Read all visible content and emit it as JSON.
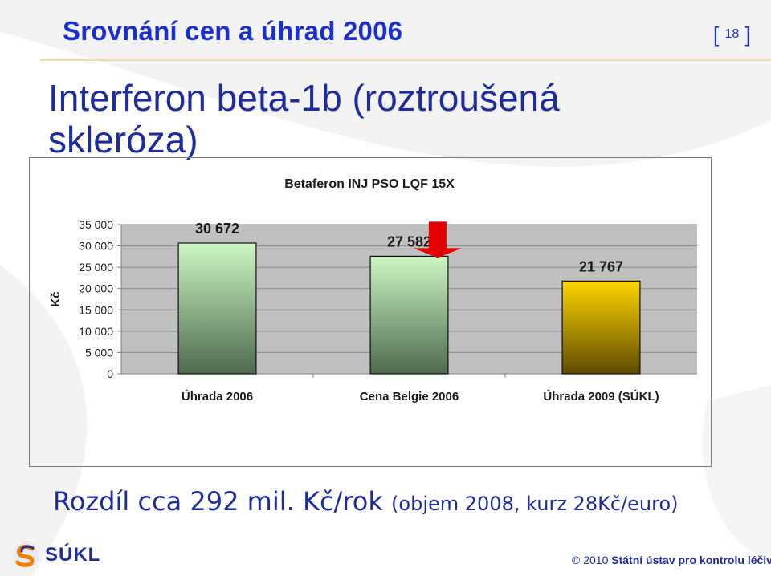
{
  "slide": {
    "title": "Srovnání cen a úhrad 2006",
    "number": "18",
    "subtitle": "Interferon beta-1b (roztroušená skleróza)",
    "note_main": "Rozdíl cca 292 mil. Kč/rok",
    "note_detail": "(objem 2008, kurz 28Kč/euro)",
    "logo_text": "SÚKL",
    "footer_year": "© 2010",
    "footer_org": "Státní ústav pro kontrolu léčiv"
  },
  "colors": {
    "title": "#1a2fd0",
    "plot_bg": "#c0c0c0",
    "bar_green_top": "#cdf7c4",
    "bar_green_bottom": "#4e6a4e",
    "bar_yellow_top": "#ffd600",
    "bar_yellow_bottom": "#5f4a00",
    "arrow": "#e30000"
  },
  "chart_data": {
    "type": "bar",
    "title": "Betaferon INJ PSO LQF 15X",
    "ylabel": "Kč",
    "xlabel": "",
    "ylim": [
      0,
      35000
    ],
    "yticks": [
      0,
      5000,
      10000,
      15000,
      20000,
      25000,
      30000,
      35000
    ],
    "ytick_labels": [
      "0",
      "5 000",
      "10 000",
      "15 000",
      "20 000",
      "25 000",
      "30 000",
      "35 000"
    ],
    "categories": [
      "Úhrada 2006",
      "Cena Belgie 2006",
      "Úhrada 2009 (SÚKL)"
    ],
    "values": [
      30672,
      27582,
      21767
    ],
    "data_labels": [
      "30 672",
      "27 582",
      "21 767"
    ],
    "grid": true,
    "annotations": [
      {
        "type": "arrow-down",
        "category": "Cena Belgie 2006"
      }
    ]
  }
}
